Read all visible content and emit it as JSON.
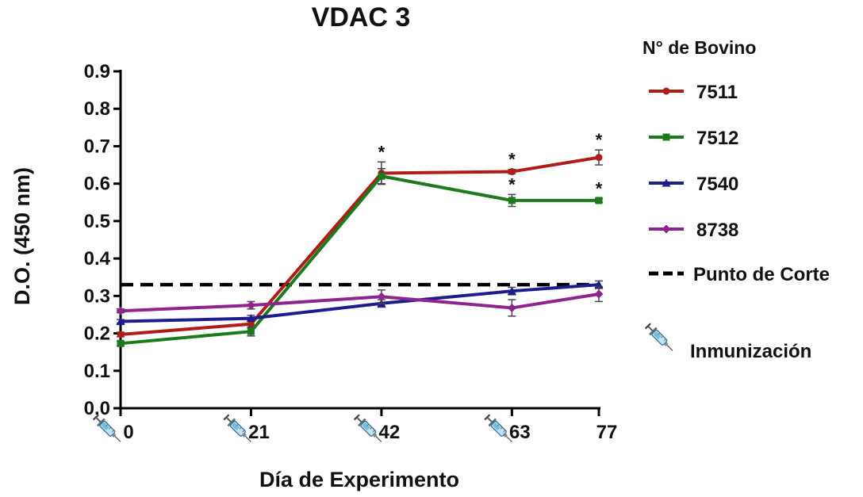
{
  "chart_data": {
    "type": "line",
    "title": "VDAC 3",
    "xlabel": "Día de Experimento",
    "ylabel": "D.O. (450 nm)",
    "x": [
      0,
      21,
      42,
      63,
      77
    ],
    "x_tick_labels": [
      "0",
      "21",
      "42",
      "63",
      "77"
    ],
    "ylim": [
      0.0,
      0.9
    ],
    "y_ticks": [
      "0.0",
      "0.1",
      "0.2",
      "0.3",
      "0.4",
      "0.5",
      "0.6",
      "0.7",
      "0.8",
      "0.9"
    ],
    "legend_title": "N° de Bovino",
    "legend_position": "right",
    "grid": false,
    "series": [
      {
        "name": "7511",
        "color": "#b01c17",
        "marker": "circle",
        "values": [
          0.197,
          0.225,
          0.628,
          0.632,
          0.67
        ],
        "errors": [
          0.006,
          0.01,
          0.03,
          0.006,
          0.02
        ]
      },
      {
        "name": "7512",
        "color": "#1b7a1b",
        "marker": "square",
        "values": [
          0.173,
          0.205,
          0.62,
          0.555,
          0.555
        ],
        "errors": [
          0.006,
          0.012,
          0.02,
          0.016,
          0.005
        ]
      },
      {
        "name": "7540",
        "color": "#1c1c8c",
        "marker": "triangle",
        "values": [
          0.232,
          0.24,
          0.28,
          0.313,
          0.33
        ],
        "errors": [
          0.005,
          0.008,
          0.01,
          0.01,
          0.01
        ]
      },
      {
        "name": "8738",
        "color": "#8e248e",
        "marker": "diamond",
        "values": [
          0.26,
          0.275,
          0.298,
          0.268,
          0.305
        ],
        "errors": [
          0.005,
          0.01,
          0.018,
          0.022,
          0.02
        ]
      }
    ],
    "reference_line": {
      "name": "Punto de Corte",
      "value": 0.33,
      "style": "dashed",
      "color": "#000000"
    },
    "significance_markers": [
      {
        "series": "7511",
        "x": 42,
        "label": "*"
      },
      {
        "series": "7511",
        "x": 63,
        "label": "*"
      },
      {
        "series": "7511",
        "x": 77,
        "label": "*"
      },
      {
        "series": "7512",
        "x": 63,
        "label": "*"
      },
      {
        "series": "7512",
        "x": 77,
        "label": "*"
      }
    ],
    "immunization_days": [
      0,
      21,
      42,
      63
    ],
    "immunization_label": "Inmunización",
    "immunization_icon": "syringe-icon"
  }
}
